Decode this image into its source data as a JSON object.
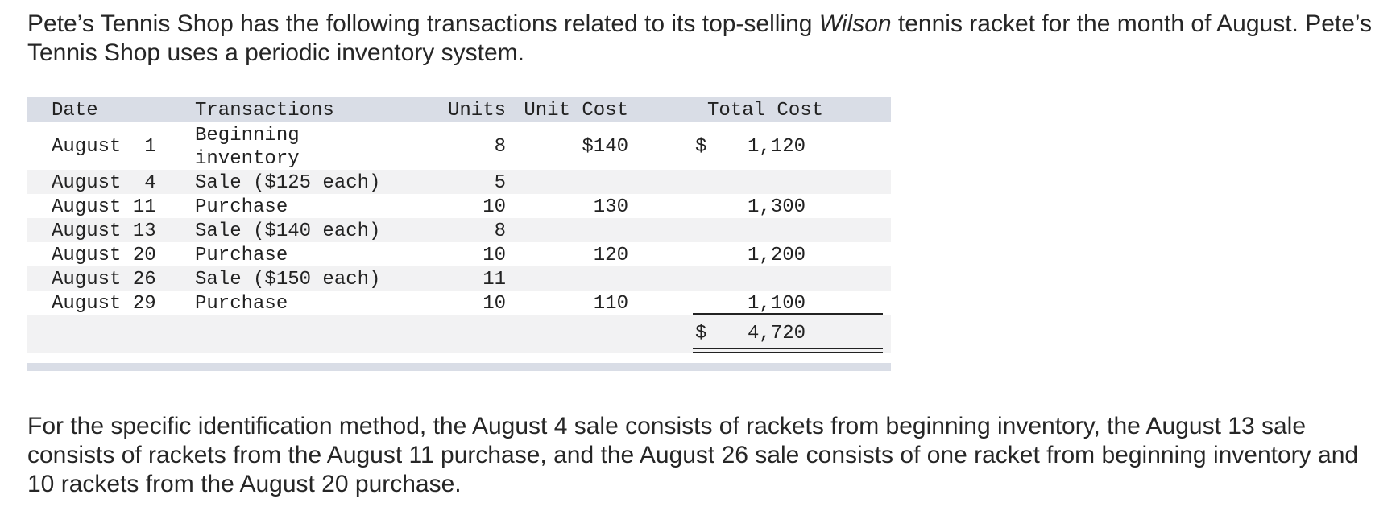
{
  "intro": {
    "part1": "Pete’s Tennis Shop has the following transactions related to its top-selling ",
    "italic": "Wilson",
    "part2": " tennis racket for the month of August. Pete’s Tennis Shop uses a periodic inventory system."
  },
  "table": {
    "headers": {
      "date": "Date",
      "transactions": "Transactions",
      "units": "Units",
      "unit_cost": "Unit Cost",
      "total_cost": "Total Cost"
    },
    "rows": [
      {
        "date": "August  1",
        "transaction": "Beginning inventory",
        "units": "8",
        "unit_cost": "$140",
        "dollar": "$",
        "total": "1,120"
      },
      {
        "date": "August  4",
        "transaction": "Sale ($125 each)",
        "units": "5",
        "unit_cost": "",
        "dollar": "",
        "total": ""
      },
      {
        "date": "August 11",
        "transaction": "Purchase",
        "units": "10",
        "unit_cost": "130",
        "dollar": "",
        "total": "1,300"
      },
      {
        "date": "August 13",
        "transaction": "Sale ($140 each)",
        "units": "8",
        "unit_cost": "",
        "dollar": "",
        "total": ""
      },
      {
        "date": "August 20",
        "transaction": "Purchase",
        "units": "10",
        "unit_cost": "120",
        "dollar": "",
        "total": "1,200"
      },
      {
        "date": "August 26",
        "transaction": "Sale ($150 each)",
        "units": "11",
        "unit_cost": "",
        "dollar": "",
        "total": ""
      },
      {
        "date": "August 29",
        "transaction": "Purchase",
        "units": "10",
        "unit_cost": "110",
        "dollar": "",
        "total": "1,100"
      }
    ],
    "total": {
      "dollar": "$",
      "value": "4,720"
    }
  },
  "outro": "For the specific identification method, the August 4 sale consists of rackets from beginning inventory, the August 13 sale consists of rackets from the August 11 purchase, and the August 26 sale consists of one racket from beginning inventory and 10 rackets from the August 20 purchase."
}
